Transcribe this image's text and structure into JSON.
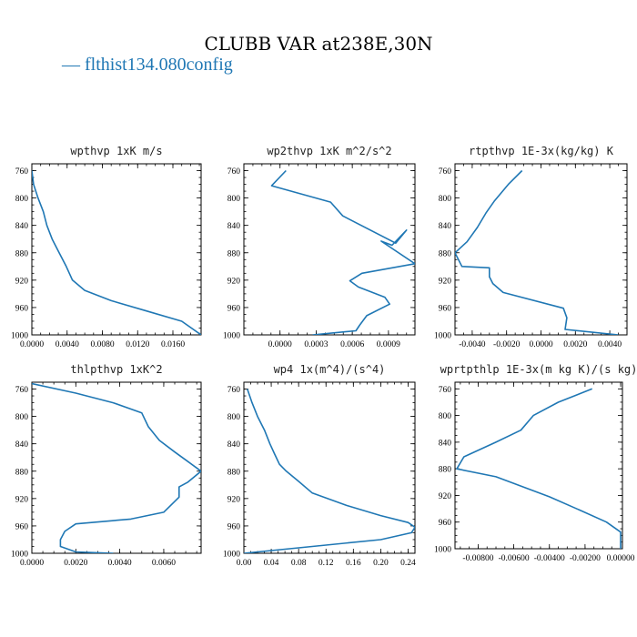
{
  "figure_title": "CLUBB VAR at238E,30N",
  "legend": {
    "label": "— flthist134.080config",
    "color": "#1f77b4"
  },
  "colors": {
    "series": "#1f77b4",
    "axis": "#000000"
  },
  "chart_data": [
    {
      "type": "line",
      "title": "wpthvp  1xK m/s",
      "series": [
        {
          "x": [
            0.0,
            0.0002,
            0.0007,
            0.0013,
            0.0017,
            0.0023,
            0.0031,
            0.0039,
            0.0046,
            0.006,
            0.009,
            0.013,
            0.017,
            0.0192
          ],
          "y": [
            760,
            780,
            800,
            820,
            840,
            860,
            880,
            900,
            920,
            935,
            950,
            965,
            980,
            1000
          ]
        }
      ],
      "xlim": [
        0.0,
        0.0192
      ],
      "ylim": [
        750,
        1000
      ],
      "xticks": [
        "0.0000",
        "0.0040",
        "0.0080",
        "0.0120",
        "0.0160"
      ],
      "yticks": [
        760,
        800,
        840,
        880,
        920,
        960,
        1000
      ]
    },
    {
      "type": "line",
      "title": "wp2thvp  1xK m^2/s^2",
      "series": [
        {
          "x": [
            5e-05,
            -7e-05,
            0.00042,
            0.00052,
            0.00096,
            0.00105,
            0.00093,
            0.00084,
            0.00112,
            0.00068,
            0.00058,
            0.00065,
            0.00087,
            0.00091,
            0.00072,
            0.00066,
            0.00063,
            0.00027
          ],
          "y": [
            760,
            782,
            806,
            826,
            866,
            847,
            869,
            863,
            896,
            910,
            921,
            930,
            945,
            955,
            972,
            986,
            994,
            1000
          ]
        }
      ],
      "xlim": [
        -0.0003,
        0.00112
      ],
      "ylim": [
        750,
        1000
      ],
      "xticks": [
        "0.0000",
        "0.0003",
        "0.0006",
        "0.0009"
      ],
      "yticks": [
        760,
        800,
        840,
        880,
        920,
        960,
        1000
      ]
    },
    {
      "type": "line",
      "title": "rtpthvp  1E-3x(kg/kg) K",
      "series": [
        {
          "x": [
            -0.0011,
            -0.0019,
            -0.0027,
            -0.0032,
            -0.0037,
            -0.0043,
            -0.005,
            -0.0046,
            -0.003,
            -0.003,
            -0.0028,
            -0.0022,
            0.0013,
            0.0015,
            0.0014,
            0.0045
          ],
          "y": [
            760,
            780,
            804,
            822,
            843,
            864,
            880,
            900,
            902,
            915,
            925,
            938,
            961,
            975,
            992,
            1000
          ]
        }
      ],
      "xlim": [
        -0.005,
        0.005
      ],
      "ylim": [
        750,
        1000
      ],
      "xticks": [
        "-0.0040",
        "-0.0020",
        "0.0000",
        "0.0020",
        "0.0040"
      ],
      "yticks": [
        760,
        800,
        840,
        880,
        920,
        960,
        1000
      ]
    },
    {
      "type": "line",
      "title": "thlpthvp  1xK^2",
      "series": [
        {
          "x": [
            0.0,
            0.002,
            0.0037,
            0.005,
            0.0053,
            0.0058,
            0.0065,
            0.0071,
            0.0077,
            0.0071,
            0.0067,
            0.0067,
            0.006,
            0.0045,
            0.002,
            0.0015,
            0.0013,
            0.0013,
            0.002,
            0.0037
          ],
          "y": [
            752,
            766,
            780,
            795,
            815,
            835,
            852,
            866,
            880,
            896,
            903,
            918,
            940,
            950,
            957,
            968,
            980,
            990,
            998,
            1000
          ]
        }
      ],
      "xlim": [
        0.0,
        0.0077
      ],
      "ylim": [
        750,
        1000
      ],
      "xticks": [
        "0.0000",
        "0.0020",
        "0.0040",
        "0.0060"
      ],
      "yticks": [
        760,
        800,
        840,
        880,
        920,
        960,
        1000
      ]
    },
    {
      "type": "line",
      "title": "wp4  1x(m^4)/(s^4)",
      "series": [
        {
          "x": [
            0.005,
            0.012,
            0.02,
            0.03,
            0.038,
            0.045,
            0.052,
            0.062,
            0.08,
            0.1,
            0.15,
            0.2,
            0.24,
            0.25,
            0.245,
            0.2,
            0.1,
            0.0
          ],
          "y": [
            760,
            780,
            800,
            820,
            840,
            855,
            870,
            880,
            895,
            912,
            930,
            945,
            955,
            962,
            970,
            980,
            990,
            1000
          ]
        }
      ],
      "xlim": [
        0.0,
        0.25
      ],
      "ylim": [
        750,
        1000
      ],
      "xticks": [
        "0.00",
        "0.04",
        "0.08",
        "0.12",
        "0.16",
        "0.20",
        "0.24"
      ],
      "yticks": [
        760,
        800,
        840,
        880,
        920,
        960,
        1000
      ]
    },
    {
      "type": "line",
      "title": "wprtpthlp  1E-3x(m kg K)/(s kg)",
      "series": [
        {
          "x": [
            -0.0016,
            -0.0035,
            -0.0049,
            -0.0056,
            -0.007,
            -0.0088,
            -0.0092,
            -0.007,
            -0.004,
            -0.0023,
            -0.0008,
            0.0,
            0.0,
            0.0
          ],
          "y": [
            760,
            780,
            800,
            822,
            840,
            862,
            880,
            892,
            922,
            942,
            960,
            975,
            990,
            1000
          ]
        }
      ],
      "xlim": [
        -0.0093,
        0.0001
      ],
      "ylim": [
        750,
        1000
      ],
      "xticks": [
        "-0.00800",
        "-0.00600",
        "-0.00400",
        "-0.00200",
        "0.00000"
      ],
      "yticks": [
        760,
        800,
        840,
        880,
        920,
        960,
        1000
      ]
    }
  ]
}
